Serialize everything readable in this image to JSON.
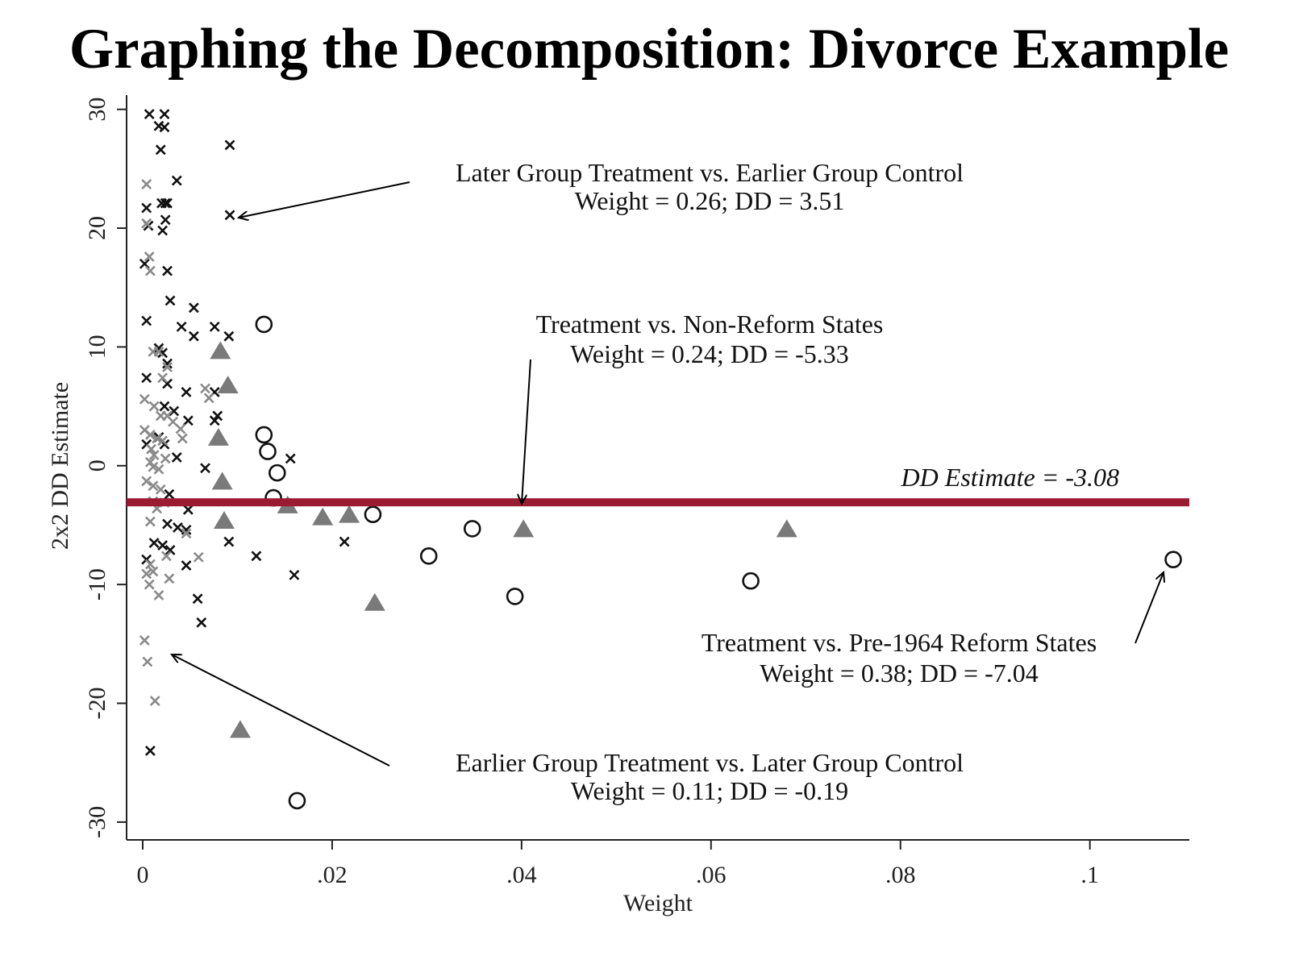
{
  "chart_data": {
    "type": "scatter",
    "title": "Graphing the  Decomposition: Divorce Example",
    "xlabel": "Weight",
    "ylabel": "2x2 DD Estimate",
    "xlim": [
      -0.0017,
      0.1105
    ],
    "ylim": [
      -31.5,
      31.2
    ],
    "x_ticks": [
      0,
      0.02,
      0.04,
      0.06,
      0.08,
      0.1
    ],
    "x_tick_labels": [
      "0",
      ".02",
      ".04",
      ".06",
      ".08",
      ".1"
    ],
    "y_ticks": [
      -30,
      -20,
      -10,
      0,
      10,
      20,
      30
    ],
    "y_tick_labels": [
      "-30",
      "-20",
      "-10",
      "0",
      "10",
      "20",
      "30"
    ],
    "grid": false,
    "colors": {
      "line": "#9b1b32",
      "triangle": "#7a7a7a",
      "x_dark": "#111111",
      "x_light": "#8a8a8a",
      "circle": "#111111"
    },
    "reference_line": {
      "y": -3.08,
      "label": "DD Estimate = -3.08"
    },
    "annotations": [
      {
        "line1": "Later Group Treatment vs. Earlier Group Control",
        "line2": "Weight = 0.26; DD = 3.51"
      },
      {
        "line1": "Treatment vs. Non-Reform States",
        "line2": "Weight = 0.24; DD = -5.33"
      },
      {
        "line1": "Treatment vs. Pre-1964 Reform States",
        "line2": "Weight = 0.38; DD = -7.04"
      },
      {
        "line1": "Earlier Group Treatment vs. Later Group Control",
        "line2": "Weight = 0.11; DD = -0.19"
      }
    ],
    "series": [
      {
        "marker": "x-dark",
        "points": [
          [
            0.0007,
            29.6
          ],
          [
            0.0023,
            29.6
          ],
          [
            0.0017,
            28.6
          ],
          [
            0.0023,
            28.5
          ],
          [
            0.0019,
            26.6
          ],
          [
            0.0092,
            27.0
          ],
          [
            0.0036,
            24.0
          ],
          [
            0.002,
            22.1
          ],
          [
            0.0024,
            22.1
          ],
          [
            0.0026,
            22.1
          ],
          [
            0.0004,
            21.7
          ],
          [
            0.0024,
            20.7
          ],
          [
            0.0092,
            21.1
          ],
          [
            0.0006,
            20.2
          ],
          [
            0.0021,
            19.8
          ],
          [
            0.0002,
            17.0
          ],
          [
            0.0026,
            16.4
          ],
          [
            0.0029,
            13.9
          ],
          [
            0.0054,
            13.3
          ],
          [
            0.0004,
            12.2
          ],
          [
            0.0041,
            11.7
          ],
          [
            0.0076,
            11.7
          ],
          [
            0.0054,
            10.9
          ],
          [
            0.0091,
            10.9
          ],
          [
            0.0017,
            9.9
          ],
          [
            0.0021,
            9.5
          ],
          [
            0.0026,
            8.6
          ],
          [
            0.0004,
            7.4
          ],
          [
            0.0026,
            6.9
          ],
          [
            0.0046,
            6.2
          ],
          [
            0.0076,
            6.2
          ],
          [
            0.0023,
            5.0
          ],
          [
            0.0033,
            4.6
          ],
          [
            0.0048,
            3.8
          ],
          [
            0.0076,
            3.8
          ],
          [
            0.0079,
            4.2
          ],
          [
            0.0004,
            1.8
          ],
          [
            0.0017,
            2.4
          ],
          [
            0.0023,
            1.8
          ],
          [
            0.0036,
            0.7
          ],
          [
            0.0156,
            0.6
          ],
          [
            0.0066,
            -0.2
          ],
          [
            0.0028,
            -2.4
          ],
          [
            0.0048,
            -3.7
          ],
          [
            0.0026,
            -4.9
          ],
          [
            0.0037,
            -5.2
          ],
          [
            0.0046,
            -5.4
          ],
          [
            0.0091,
            -6.4
          ],
          [
            0.0012,
            -6.5
          ],
          [
            0.0021,
            -6.7
          ],
          [
            0.0029,
            -7.1
          ],
          [
            0.0004,
            -7.9
          ],
          [
            0.012,
            -7.6
          ],
          [
            0.0046,
            -8.4
          ],
          [
            0.0213,
            -6.4
          ],
          [
            0.016,
            -9.2
          ],
          [
            0.0058,
            -11.2
          ],
          [
            0.0062,
            -13.2
          ],
          [
            0.0008,
            -24.0
          ]
        ]
      },
      {
        "marker": "x-light",
        "points": [
          [
            0.0004,
            23.7
          ],
          [
            0.0004,
            20.4
          ],
          [
            0.0007,
            17.6
          ],
          [
            0.0008,
            16.4
          ],
          [
            0.0011,
            9.6
          ],
          [
            0.0017,
            9.6
          ],
          [
            0.0026,
            8.3
          ],
          [
            0.0021,
            7.4
          ],
          [
            0.0066,
            6.5
          ],
          [
            0.007,
            5.7
          ],
          [
            0.0002,
            5.6
          ],
          [
            0.0012,
            5.0
          ],
          [
            0.0019,
            4.2
          ],
          [
            0.0026,
            4.2
          ],
          [
            0.0032,
            3.7
          ],
          [
            0.004,
            3.1
          ],
          [
            0.0002,
            3.0
          ],
          [
            0.0008,
            2.6
          ],
          [
            0.0015,
            2.3
          ],
          [
            0.0021,
            2.1
          ],
          [
            0.0042,
            2.3
          ],
          [
            0.0009,
            1.4
          ],
          [
            0.0012,
            0.9
          ],
          [
            0.0024,
            0.6
          ],
          [
            0.0008,
            0.3
          ],
          [
            0.0011,
            -0.1
          ],
          [
            0.0017,
            -0.3
          ],
          [
            0.0004,
            -1.3
          ],
          [
            0.0011,
            -1.7
          ],
          [
            0.0019,
            -2.0
          ],
          [
            0.0011,
            -3.0
          ],
          [
            0.0023,
            -3.1
          ],
          [
            0.0015,
            -3.6
          ],
          [
            0.0008,
            -4.7
          ],
          [
            0.0046,
            -5.7
          ],
          [
            0.0059,
            -7.7
          ],
          [
            0.0025,
            -7.6
          ],
          [
            0.0008,
            -8.3
          ],
          [
            0.0011,
            -8.9
          ],
          [
            0.0004,
            -9.1
          ],
          [
            0.0028,
            -9.5
          ],
          [
            0.0007,
            -10.0
          ],
          [
            0.0017,
            -10.9
          ],
          [
            0.0002,
            -14.7
          ],
          [
            0.0005,
            -16.5
          ],
          [
            0.0013,
            -19.8
          ]
        ]
      },
      {
        "marker": "circle",
        "points": [
          [
            0.0128,
            11.9
          ],
          [
            0.0128,
            2.6
          ],
          [
            0.0132,
            1.2
          ],
          [
            0.0142,
            -0.6
          ],
          [
            0.0138,
            -2.7
          ],
          [
            0.0163,
            -28.2
          ],
          [
            0.0243,
            -4.1
          ],
          [
            0.0302,
            -7.6
          ],
          [
            0.0348,
            -5.3
          ],
          [
            0.0393,
            -11.0
          ],
          [
            0.0642,
            -9.7
          ],
          [
            0.1088,
            -7.9
          ]
        ]
      },
      {
        "marker": "triangle",
        "points": [
          [
            0.0082,
            9.6
          ],
          [
            0.009,
            6.7
          ],
          [
            0.008,
            2.3
          ],
          [
            0.0084,
            -1.4
          ],
          [
            0.0086,
            -4.7
          ],
          [
            0.0153,
            -3.4
          ],
          [
            0.019,
            -4.4
          ],
          [
            0.0218,
            -4.2
          ],
          [
            0.0245,
            -11.6
          ],
          [
            0.0103,
            -22.3
          ],
          [
            0.0402,
            -5.4
          ],
          [
            0.068,
            -5.4
          ]
        ]
      }
    ]
  }
}
